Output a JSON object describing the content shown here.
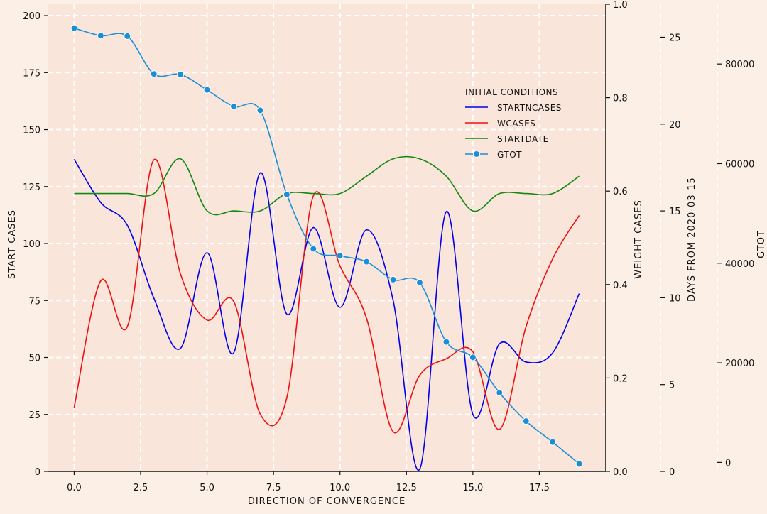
{
  "chart_data": {
    "type": "line",
    "title": "",
    "xlabel": "DIRECTION OF CONVERGENCE",
    "xlim": [
      -1,
      20
    ],
    "xticks": [
      0.0,
      2.5,
      5.0,
      7.5,
      10.0,
      12.5,
      15.0,
      17.5
    ],
    "xtick_labels": [
      "0.0",
      "2.5",
      "5.0",
      "7.5",
      "10.0",
      "12.5",
      "15.0",
      "17.5"
    ],
    "grid": true,
    "legend": {
      "title": "INITIAL CONDITIONS",
      "placement": "upper-right of plot area",
      "entries": [
        "STARTNCASES",
        "WCASES",
        "STARTDATE",
        "GTOT"
      ]
    },
    "axes": {
      "start_cases": {
        "label": "START CASES",
        "ylim": [
          0,
          205
        ],
        "ticks": [
          0,
          25,
          50,
          75,
          100,
          125,
          150,
          175,
          200
        ],
        "tick_labels": [
          "0",
          "25",
          "50",
          "75",
          "100",
          "125",
          "150",
          "175",
          "200"
        ]
      },
      "weight_cases": {
        "label": "WEIGHT CASES",
        "ylim": [
          0,
          1.0
        ],
        "ticks": [
          0.0,
          0.2,
          0.4,
          0.6,
          0.8,
          1.0
        ],
        "tick_labels": [
          "0.0",
          "0.2",
          "0.4",
          "0.6",
          "0.8",
          "1.0"
        ]
      },
      "startdate": {
        "label": "DAYS FROM 2020-03-15",
        "ylim": [
          0,
          26.9
        ],
        "ticks": [
          0,
          5,
          10,
          15,
          20,
          25
        ],
        "tick_labels": [
          "0",
          "5",
          "10",
          "15",
          "20",
          "25"
        ]
      },
      "gtot": {
        "label": "GTOT",
        "ylim": [
          -1800,
          92000
        ],
        "ticks": [
          0,
          20000,
          40000,
          60000,
          80000
        ],
        "tick_labels": [
          "0",
          "20000",
          "40000",
          "60000",
          "80000"
        ]
      }
    },
    "series": [
      {
        "name": "STARTNCASES",
        "color": "#0000ee",
        "marker": false,
        "axis": "start_cases",
        "x": [
          0,
          1,
          2,
          3,
          4,
          5,
          6,
          7,
          8,
          9,
          10,
          11,
          12,
          13,
          14,
          15,
          16,
          17,
          18,
          19
        ],
        "y": [
          137,
          118,
          108,
          76,
          54,
          96,
          52,
          131,
          69,
          107,
          72,
          106,
          75,
          1,
          114,
          25,
          56,
          48,
          52,
          78
        ]
      },
      {
        "name": "WCASES",
        "color": "#ee1111",
        "marker": false,
        "axis": "weight_cases",
        "x": [
          0,
          1,
          2,
          3,
          4,
          5,
          6,
          7,
          8,
          9,
          10,
          11,
          12,
          13,
          14,
          15,
          16,
          17,
          18,
          19
        ],
        "y": [
          0.137,
          0.408,
          0.31,
          0.667,
          0.423,
          0.324,
          0.364,
          0.123,
          0.158,
          0.59,
          0.44,
          0.328,
          0.085,
          0.206,
          0.241,
          0.256,
          0.09,
          0.31,
          0.455,
          0.548
        ]
      },
      {
        "name": "STARTDATE",
        "color": "#118811",
        "marker": false,
        "axis": "startdate",
        "x": [
          0,
          1,
          2,
          3,
          4,
          5,
          6,
          7,
          8,
          9,
          10,
          11,
          12,
          13,
          14,
          15,
          16,
          17,
          18,
          19
        ],
        "y": [
          16,
          16,
          16,
          16,
          18,
          15,
          15,
          15,
          16,
          16,
          16,
          17,
          18,
          18,
          17,
          15,
          16,
          16,
          16,
          17
        ]
      },
      {
        "name": "GTOT",
        "color": "#1a8ed6",
        "marker": true,
        "axis": "gtot",
        "x": [
          0,
          1,
          2,
          3,
          4,
          5,
          6,
          7,
          8,
          9,
          10,
          11,
          12,
          13,
          14,
          15,
          16,
          17,
          18,
          19
        ],
        "y": [
          87200,
          85700,
          85600,
          78000,
          77900,
          74800,
          71500,
          70700,
          53800,
          42900,
          41500,
          40300,
          36700,
          36100,
          24200,
          21100,
          14000,
          8300,
          4100,
          -300
        ]
      }
    ]
  }
}
